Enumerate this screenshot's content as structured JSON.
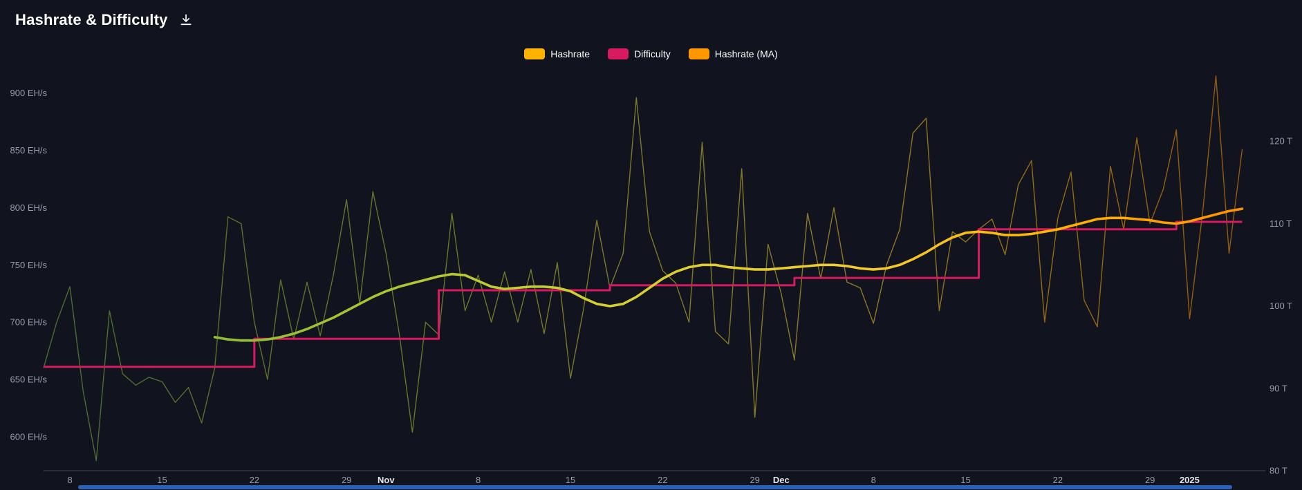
{
  "header": {
    "title": "Hashrate & Difficulty"
  },
  "legend": [
    {
      "label": "Hashrate",
      "color": "#ffb300"
    },
    {
      "label": "Difficulty",
      "color": "#d81b60"
    },
    {
      "label": "Hashrate (MA)",
      "color": "#ff9800"
    }
  ],
  "chart_data": {
    "type": "line",
    "title": "Hashrate & Difficulty",
    "xlabel": "",
    "ylabel_left": "EH/s",
    "ylabel_right": "T",
    "grid": false,
    "legend_position": "top-center",
    "ylim_left": [
      570,
      920
    ],
    "ylim_right": [
      80,
      122
    ],
    "x_axis": {
      "ticks": [
        {
          "date": "2024-10-08",
          "label": "8"
        },
        {
          "date": "2024-10-15",
          "label": "15"
        },
        {
          "date": "2024-10-22",
          "label": "22"
        },
        {
          "date": "2024-10-29",
          "label": "29"
        },
        {
          "date": "2024-11-01",
          "label": "Nov",
          "bold": true
        },
        {
          "date": "2024-11-08",
          "label": "8"
        },
        {
          "date": "2024-11-15",
          "label": "15"
        },
        {
          "date": "2024-11-22",
          "label": "22"
        },
        {
          "date": "2024-11-29",
          "label": "29"
        },
        {
          "date": "2024-12-01",
          "label": "Dec",
          "bold": true
        },
        {
          "date": "2024-12-08",
          "label": "8"
        },
        {
          "date": "2024-12-15",
          "label": "15"
        },
        {
          "date": "2024-12-22",
          "label": "22"
        },
        {
          "date": "2024-12-29",
          "label": "29"
        },
        {
          "date": "2025-01-01",
          "label": "2025",
          "bold": true
        }
      ]
    },
    "y_axis_left": {
      "ticks": [
        {
          "value": 600,
          "label": "600 EH/s"
        },
        {
          "value": 650,
          "label": "650 EH/s"
        },
        {
          "value": 700,
          "label": "700 EH/s"
        },
        {
          "value": 750,
          "label": "750 EH/s"
        },
        {
          "value": 800,
          "label": "800 EH/s"
        },
        {
          "value": 850,
          "label": "850 EH/s"
        },
        {
          "value": 900,
          "label": "900 EH/s"
        }
      ]
    },
    "y_axis_right": {
      "ticks": [
        {
          "value": 80,
          "label": "80 T"
        },
        {
          "value": 90,
          "label": "90 T"
        },
        {
          "value": 100,
          "label": "100 T"
        },
        {
          "value": 110,
          "label": "110 T"
        },
        {
          "value": 120,
          "label": "120 T"
        }
      ]
    },
    "dates": [
      "2024-10-06",
      "2024-10-07",
      "2024-10-08",
      "2024-10-09",
      "2024-10-10",
      "2024-10-11",
      "2024-10-12",
      "2024-10-13",
      "2024-10-14",
      "2024-10-15",
      "2024-10-16",
      "2024-10-17",
      "2024-10-18",
      "2024-10-19",
      "2024-10-20",
      "2024-10-21",
      "2024-10-22",
      "2024-10-23",
      "2024-10-24",
      "2024-10-25",
      "2024-10-26",
      "2024-10-27",
      "2024-10-28",
      "2024-10-29",
      "2024-10-30",
      "2024-10-31",
      "2024-11-01",
      "2024-11-02",
      "2024-11-03",
      "2024-11-04",
      "2024-11-05",
      "2024-11-06",
      "2024-11-07",
      "2024-11-08",
      "2024-11-09",
      "2024-11-10",
      "2024-11-11",
      "2024-11-12",
      "2024-11-13",
      "2024-11-14",
      "2024-11-15",
      "2024-11-16",
      "2024-11-17",
      "2024-11-18",
      "2024-11-19",
      "2024-11-20",
      "2024-11-21",
      "2024-11-22",
      "2024-11-23",
      "2024-11-24",
      "2024-11-25",
      "2024-11-26",
      "2024-11-27",
      "2024-11-28",
      "2024-11-29",
      "2024-11-30",
      "2024-12-01",
      "2024-12-02",
      "2024-12-03",
      "2024-12-04",
      "2024-12-05",
      "2024-12-06",
      "2024-12-07",
      "2024-12-08",
      "2024-12-09",
      "2024-12-10",
      "2024-12-11",
      "2024-12-12",
      "2024-12-13",
      "2024-12-14",
      "2024-12-15",
      "2024-12-16",
      "2024-12-17",
      "2024-12-18",
      "2024-12-19",
      "2024-12-20",
      "2024-12-21",
      "2024-12-22",
      "2024-12-23",
      "2024-12-24",
      "2024-12-25",
      "2024-12-26",
      "2024-12-27",
      "2024-12-28",
      "2024-12-29",
      "2024-12-30",
      "2024-12-31",
      "2025-01-01",
      "2025-01-02",
      "2025-01-03",
      "2025-01-04",
      "2025-01-05"
    ],
    "series": [
      {
        "name": "Hashrate",
        "axis": "left",
        "unit": "EH/s",
        "color": "#ffb300",
        "values": [
          660,
          700,
          731,
          640,
          579,
          710,
          655,
          645,
          652,
          648,
          630,
          643,
          612,
          660,
          792,
          786,
          700,
          650,
          737,
          685,
          735,
          688,
          741,
          807,
          716,
          814,
          760,
          690,
          604,
          700,
          689,
          795,
          710,
          741,
          700,
          744,
          700,
          746,
          690,
          752,
          651,
          712,
          789,
          730,
          760,
          896,
          779,
          745,
          734,
          700,
          857,
          692,
          681,
          834,
          617,
          768,
          725,
          667,
          795,
          738,
          800,
          735,
          730,
          699,
          750,
          781,
          865,
          878,
          710,
          779,
          770,
          781,
          790,
          759,
          820,
          841,
          700,
          791,
          831,
          719,
          696,
          836,
          781,
          861,
          786,
          816,
          868,
          703,
          796,
          915,
          760,
          851
        ]
      },
      {
        "name": "Difficulty",
        "axis": "right",
        "unit": "T",
        "color": "#d81b60",
        "steps": [
          {
            "from": "2024-10-06",
            "value": 92.6
          },
          {
            "from": "2024-10-22",
            "value": 96
          },
          {
            "from": "2024-11-05",
            "value": 101.9
          },
          {
            "from": "2024-11-18",
            "value": 102.5
          },
          {
            "from": "2024-12-02",
            "value": 103.4
          },
          {
            "from": "2024-12-16",
            "value": 109.3
          },
          {
            "from": "2024-12-31",
            "value": 110.2
          }
        ]
      },
      {
        "name": "Hashrate (MA)",
        "axis": "left",
        "unit": "EH/s",
        "start_date": "2024-10-19",
        "gradient": [
          {
            "offset": 0,
            "color": "#7cb342"
          },
          {
            "offset": 0.22,
            "color": "#9ec131"
          },
          {
            "offset": 0.45,
            "color": "#cfd02f"
          },
          {
            "offset": 0.68,
            "color": "#f2cb2f"
          },
          {
            "offset": 0.85,
            "color": "#ffb300"
          },
          {
            "offset": 1,
            "color": "#ff9100"
          }
        ],
        "values": [
          687,
          685,
          684,
          684,
          685,
          687,
          690,
          694,
          699,
          704,
          710,
          716,
          722,
          727,
          731,
          734,
          737,
          740,
          742,
          741,
          736,
          731,
          729,
          730,
          731,
          731,
          730,
          727,
          721,
          716,
          714,
          716,
          722,
          730,
          738,
          744,
          748,
          750,
          750,
          748,
          747,
          746,
          746,
          747,
          748,
          749,
          750,
          750,
          749,
          747,
          746,
          747,
          750,
          755,
          761,
          768,
          774,
          778,
          779,
          778,
          776,
          776,
          777,
          779,
          781,
          784,
          787,
          790,
          791,
          791,
          790,
          789,
          787,
          786,
          788,
          791,
          794,
          797,
          799
        ]
      }
    ]
  }
}
